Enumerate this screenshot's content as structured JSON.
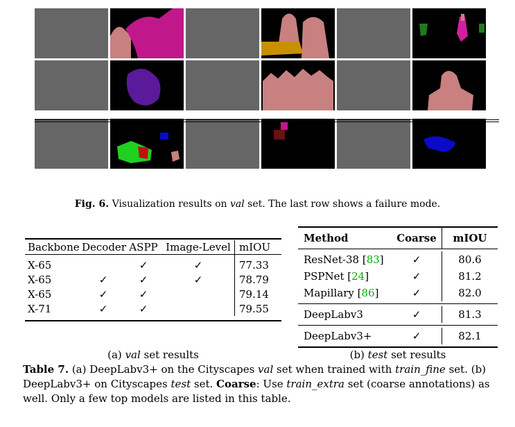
{
  "figure": {
    "label": "Fig. 6.",
    "caption_pre": " Visualization results on ",
    "caption_val": "val",
    "caption_post": " set. The last row shows a failure mode."
  },
  "table_a": {
    "headers": [
      "Backbone",
      "Decoder",
      "ASPP",
      "Image-Level",
      "mIOU"
    ],
    "rows": [
      {
        "backbone": "X-65",
        "decoder": "",
        "aspp": "✓",
        "image_level": "✓",
        "miou": "77.33"
      },
      {
        "backbone": "X-65",
        "decoder": "✓",
        "aspp": "✓",
        "image_level": "✓",
        "miou": "78.79"
      },
      {
        "backbone": "X-65",
        "decoder": "✓",
        "aspp": "✓",
        "image_level": "",
        "miou": "79.14"
      },
      {
        "backbone": "X-71",
        "decoder": "✓",
        "aspp": "✓",
        "image_level": "",
        "miou": "79.55"
      }
    ],
    "subcaption_pre": "(a) ",
    "subcaption_italic": "val",
    "subcaption_post": " set results"
  },
  "table_b": {
    "headers": [
      "Method",
      "Coarse",
      "mIOU"
    ],
    "group1": [
      {
        "method": "ResNet-38 [",
        "cite": "83",
        "close": "]",
        "coarse": "✓",
        "miou": "80.6"
      },
      {
        "method": "PSPNet [",
        "cite": "24",
        "close": "]",
        "coarse": "✓",
        "miou": "81.2"
      },
      {
        "method": "Mapillary [",
        "cite": "86",
        "close": "]",
        "coarse": "✓",
        "miou": "82.0"
      }
    ],
    "group2": [
      {
        "method": "DeepLabv3",
        "coarse": "✓",
        "miou": "81.3"
      }
    ],
    "group3": [
      {
        "method": "DeepLabv3+",
        "coarse": "✓",
        "miou": "82.1"
      }
    ],
    "subcaption_pre": "(b) ",
    "subcaption_italic": "test",
    "subcaption_post": " set results"
  },
  "table_caption": {
    "label": "Table 7.",
    "t1": " (a) DeepLabv3+ on the Cityscapes ",
    "t1_italic": "val",
    "t2": " set when trained with ",
    "t2_italic": "train_fine",
    "t3": " set. (b) DeepLabv3+ on Cityscapes ",
    "t3_italic": "test",
    "t4": " set. ",
    "coarse_bold": "Coarse",
    "t5": ": Use ",
    "t5_italic": "train_extra",
    "t6": " set (coarse annotations) as well. Only a few top models are listed in this table."
  },
  "colors": {
    "person": "#c88080",
    "horse": "#c0188a",
    "dog": "#5a1a9a",
    "table": "#c89000",
    "car": "#0a0ac8",
    "sofa": "#20d020",
    "chair": "#c01010",
    "citation": "#00b000"
  }
}
